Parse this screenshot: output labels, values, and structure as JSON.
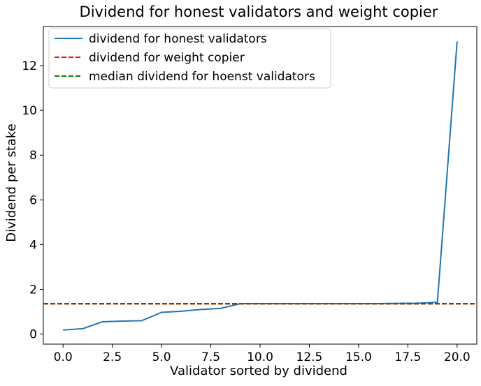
{
  "chart_data": {
    "type": "line",
    "title": "Dividend for honest validators and weight copier",
    "xlabel": "Validator sorted by dividend",
    "ylabel": "Dividend per stake",
    "xlim": [
      -1.0,
      21.0
    ],
    "ylim": [
      -0.45,
      13.75
    ],
    "xticks": [
      0.0,
      2.5,
      5.0,
      7.5,
      10.0,
      12.5,
      15.0,
      17.5,
      20.0
    ],
    "xtick_labels": [
      "0.0",
      "2.5",
      "5.0",
      "7.5",
      "10.0",
      "12.5",
      "15.0",
      "17.5",
      "20.0"
    ],
    "yticks": [
      0,
      2,
      4,
      6,
      8,
      10,
      12
    ],
    "ytick_labels": [
      "0",
      "2",
      "4",
      "6",
      "8",
      "10",
      "12"
    ],
    "grid": false,
    "legend_position": "top-left",
    "series": [
      {
        "name": "dividend for honest validators",
        "style": "solid",
        "color": "#1f77b4",
        "x": [
          0,
          1,
          2,
          3,
          4,
          5,
          6,
          7,
          8,
          9,
          10,
          11,
          12,
          13,
          14,
          15,
          16,
          17,
          18,
          19,
          20
        ],
        "values": [
          0.18,
          0.24,
          0.55,
          0.58,
          0.6,
          0.97,
          1.02,
          1.1,
          1.15,
          1.36,
          1.36,
          1.36,
          1.36,
          1.36,
          1.36,
          1.36,
          1.36,
          1.37,
          1.38,
          1.42,
          13.08
        ]
      },
      {
        "name": "dividend for weight copier",
        "style": "dashed",
        "color": "#ff0000",
        "hline": 1.35
      },
      {
        "name": "median dividend for hoenst validators",
        "style": "dashed",
        "color": "#008000",
        "hline": 1.36
      }
    ]
  }
}
